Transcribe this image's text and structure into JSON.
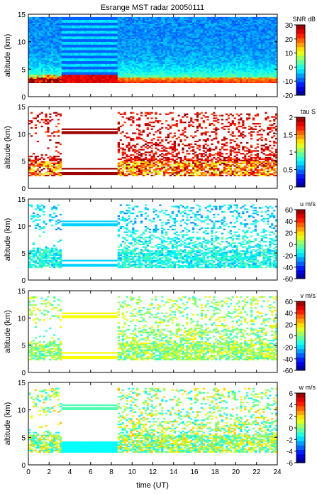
{
  "figure": {
    "title": "Esrange MST radar 20050111",
    "xlabel": "time (UT)",
    "x_ticks": [
      "0",
      "2",
      "4",
      "6",
      "8",
      "10",
      "12",
      "14",
      "16",
      "18",
      "20",
      "22",
      "24"
    ]
  },
  "chart_data": [
    {
      "type": "heatmap",
      "title": "Esrange MST radar 20050111",
      "ylabel": "altitude (km)",
      "xlabel": "",
      "xlim": [
        0,
        24
      ],
      "ylim": [
        0,
        15
      ],
      "y_ticks": [
        "0",
        "5",
        "10",
        "15"
      ],
      "colorbar": {
        "label": "SNR dB",
        "range": [
          -20,
          30
        ],
        "ticks": [
          "30",
          "20",
          "10",
          "0",
          "-10",
          "-20"
        ]
      },
      "pattern": "snr"
    },
    {
      "type": "heatmap",
      "ylabel": "altitude (km)",
      "xlabel": "",
      "xlim": [
        0,
        24
      ],
      "ylim": [
        0,
        15
      ],
      "y_ticks": [
        "0",
        "5",
        "10",
        "15"
      ],
      "colorbar": {
        "label": "tau S",
        "range": [
          0,
          2
        ],
        "ticks": [
          "2",
          "1.5",
          "1",
          "0.5",
          "0"
        ]
      },
      "pattern": "tau"
    },
    {
      "type": "heatmap",
      "ylabel": "altitude (km)",
      "xlabel": "",
      "xlim": [
        0,
        24
      ],
      "ylim": [
        0,
        15
      ],
      "y_ticks": [
        "0",
        "5",
        "10",
        "15"
      ],
      "colorbar": {
        "label": "u m/s",
        "range": [
          -60,
          60
        ],
        "ticks": [
          "60",
          "40",
          "20",
          "0",
          "-20",
          "-40",
          "-60"
        ]
      },
      "pattern": "u"
    },
    {
      "type": "heatmap",
      "ylabel": "altitude (km)",
      "xlabel": "",
      "xlim": [
        0,
        24
      ],
      "ylim": [
        0,
        15
      ],
      "y_ticks": [
        "0",
        "5",
        "10",
        "15"
      ],
      "colorbar": {
        "label": "v m/s",
        "range": [
          -60,
          60
        ],
        "ticks": [
          "60",
          "40",
          "20",
          "0",
          "-20",
          "-40",
          "-60"
        ]
      },
      "pattern": "v"
    },
    {
      "type": "heatmap",
      "ylabel": "altitude (km)",
      "xlabel": "time (UT)",
      "xlim": [
        0,
        24
      ],
      "ylim": [
        0,
        15
      ],
      "y_ticks": [
        "0",
        "5",
        "10",
        "15"
      ],
      "colorbar": {
        "label": "w m/s",
        "range": [
          -6,
          6
        ],
        "ticks": [
          "6",
          "4",
          "2",
          "0",
          "-2",
          "-4",
          "-6"
        ]
      },
      "pattern": "w"
    }
  ]
}
